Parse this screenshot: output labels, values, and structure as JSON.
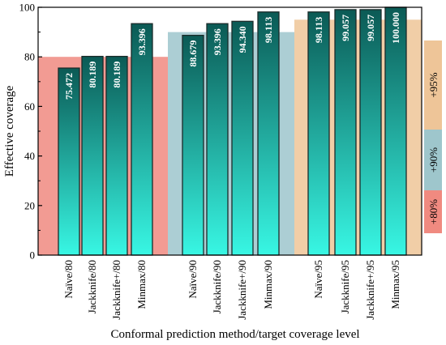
{
  "chart_data": {
    "type": "bar",
    "xlabel": "Conformal prediction method/target coverage level",
    "ylabel": "Effective coverage",
    "ylim": [
      0,
      100
    ],
    "yticks": [
      0,
      20,
      40,
      60,
      80,
      100
    ],
    "categories": [
      "Naïve/80",
      "Jackknife/80",
      "Jackknife+/80",
      "Minmax/80",
      "Naïve/90",
      "Jackknife/90",
      "Jackknife+/90",
      "Minmax/90",
      "Naïve/95",
      "Jackknife/95",
      "Jackknife+/95",
      "Minmax/95"
    ],
    "values": [
      75.472,
      80.189,
      80.189,
      93.396,
      88.679,
      93.396,
      94.34,
      98.113,
      98.113,
      99.057,
      99.057,
      100.0
    ],
    "value_labels": [
      "75.472",
      "80.189",
      "80.189",
      "93.396",
      "88.679",
      "93.396",
      "94.340",
      "98.113",
      "98.113",
      "99.057",
      "99.057",
      "100.000"
    ],
    "target_levels": [
      {
        "name": "+80%",
        "value": 80,
        "color": "#f08a80"
      },
      {
        "name": "+90%",
        "value": 90,
        "color": "#9ec6cc"
      },
      {
        "name": "+95%",
        "value": 95,
        "color": "#eec598"
      }
    ],
    "bar_gradient": {
      "top": "#0b5a55",
      "bottom": "#38f7e4"
    },
    "legend_position": "right",
    "grid": false
  }
}
